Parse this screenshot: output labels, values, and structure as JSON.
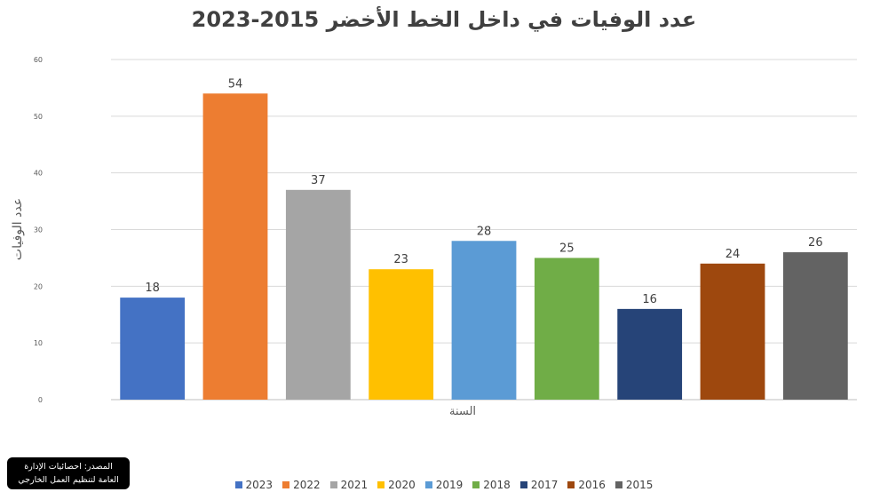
{
  "chart_data": {
    "type": "bar",
    "title": "عدد الوفيات في داخل الخط الأخضر 2015-2023",
    "xlabel": "السنة",
    "ylabel": "عدد الوفيات",
    "ylim": [
      0,
      60
    ],
    "yticks": [
      0,
      10,
      20,
      30,
      40,
      50,
      60
    ],
    "grid": true,
    "legend_position": "bottom",
    "categories": [
      "2023",
      "2022",
      "2021",
      "2020",
      "2019",
      "2018",
      "2017",
      "2016",
      "2015"
    ],
    "values": [
      18,
      54,
      37,
      23,
      28,
      25,
      16,
      24,
      26
    ],
    "colors": [
      "#4472C4",
      "#ED7D31",
      "#A5A5A5",
      "#FFC000",
      "#5B9BD5",
      "#70AD47",
      "#264478",
      "#9E480E",
      "#636363"
    ]
  },
  "source_note": {
    "line1": "المصدر: احصائيات الإدارة",
    "line2": "العامة لتنظيم العمل الخارجي"
  }
}
